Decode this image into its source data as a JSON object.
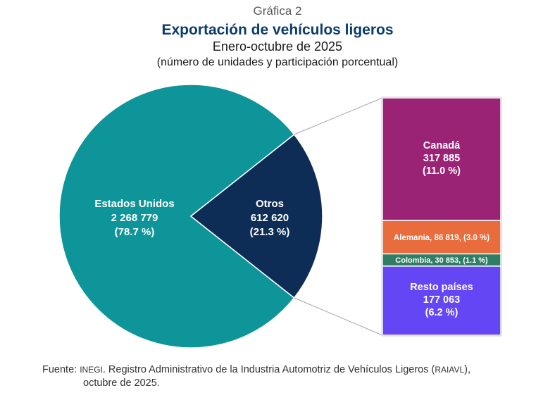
{
  "header": {
    "pretitle": "Gráfica 2",
    "title": "Exportación de vehículos ligeros",
    "subtitle": "Enero-octubre de 2025",
    "units": "(número de unidades y participación porcentual)"
  },
  "chart_data": {
    "type": "pie-of-bar",
    "title": "Exportación de vehículos ligeros",
    "pie": [
      {
        "name": "Estados Unidos",
        "value_text": "2 268 779",
        "pct_text": "(78.7 %)",
        "value": 2268779,
        "pct": 78.7,
        "color": "#0e9599"
      },
      {
        "name": "Otros",
        "value_text": "612 620",
        "pct_text": "(21.3 %)",
        "value": 612620,
        "pct": 21.3,
        "color": "#0d2d57"
      }
    ],
    "bar": [
      {
        "name": "Canadá",
        "value_text": "317 885",
        "pct_text": "(11.0 %)",
        "value": 317885,
        "pct": 11.0,
        "color": "#9b2375",
        "layout": "stacked"
      },
      {
        "name": "Alemania",
        "label": "Alemania, 86 819, (3.0 %)",
        "value": 86819,
        "pct": 3.0,
        "color": "#e96c3c",
        "layout": "inline"
      },
      {
        "name": "Colombia",
        "label": "Colombia,  30 853, (1.1 %)",
        "value": 30853,
        "pct": 1.1,
        "color": "#2f7d62",
        "layout": "inline"
      },
      {
        "name": "Resto países",
        "value_text": "177 063",
        "pct_text": "(6.2 %)",
        "value": 177063,
        "pct": 6.2,
        "color": "#6546f5",
        "layout": "stacked"
      }
    ]
  },
  "source": {
    "prefix": "Fuente: ",
    "org": "INEGI",
    "text": ". Registro Administrativo de la Industria Automotriz de Vehículos Ligeros (",
    "abbr": "RAIAVL",
    "suffix": "),",
    "line2": "octubre de 2025."
  }
}
